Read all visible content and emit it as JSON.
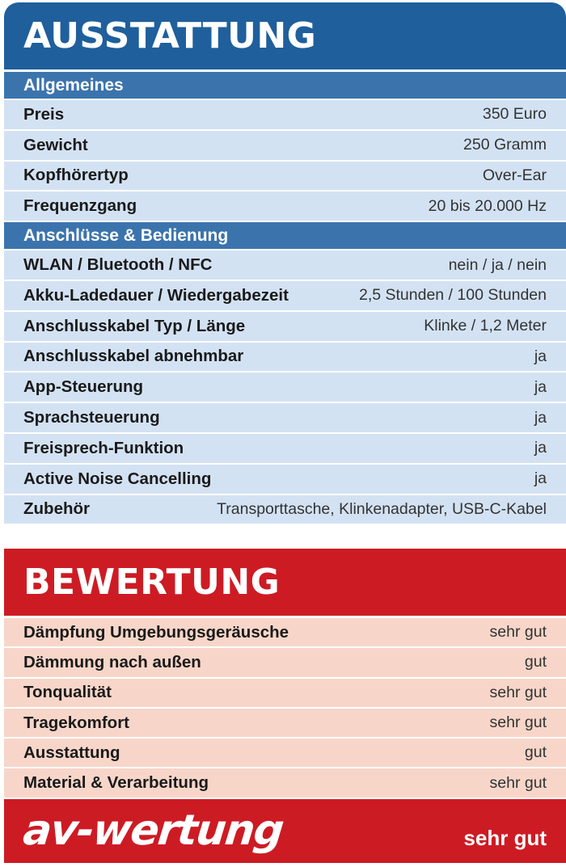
{
  "ausstattung": {
    "title": "AUSSTATTUNG",
    "sections": [
      {
        "heading": "Allgemeines",
        "rows": [
          {
            "label": "Preis",
            "value": "350 Euro"
          },
          {
            "label": "Gewicht",
            "value": "250 Gramm"
          },
          {
            "label": "Kopfhörertyp",
            "value": "Over-Ear"
          },
          {
            "label": "Frequenzgang",
            "value": "20 bis 20.000 Hz"
          }
        ]
      },
      {
        "heading": "Anschlüsse & Bedienung",
        "rows": [
          {
            "label": "WLAN / Bluetooth / NFC",
            "value": "nein / ja / nein"
          },
          {
            "label": "Akku-Ladedauer / Wiedergabezeit",
            "value": "2,5 Stunden / 100 Stunden"
          },
          {
            "label": "Anschlusskabel Typ / Länge",
            "value": "Klinke / 1,2 Meter"
          },
          {
            "label": "Anschlusskabel abnehmbar",
            "value": "ja"
          },
          {
            "label": "App-Steuerung",
            "value": "ja"
          },
          {
            "label": "Sprachsteuerung",
            "value": "ja"
          },
          {
            "label": "Freisprech-Funktion",
            "value": "ja"
          },
          {
            "label": "Active Noise Cancelling",
            "value": "ja"
          },
          {
            "label": "Zubehör",
            "value": "Transporttasche, Klinkenadapter, USB-C-Kabel"
          }
        ]
      }
    ]
  },
  "bewertung": {
    "title": "BEWERTUNG",
    "rows": [
      {
        "label": "Dämpfung Umgebungsgeräusche",
        "value": "sehr gut"
      },
      {
        "label": "Dämmung nach außen",
        "value": "gut"
      },
      {
        "label": "Tonqualität",
        "value": "sehr gut"
      },
      {
        "label": "Tragekomfort",
        "value": "sehr gut"
      },
      {
        "label": "Ausstattung",
        "value": "gut"
      },
      {
        "label": "Material & Verarbeitung",
        "value": "sehr gut"
      }
    ],
    "brand": "av-wertung",
    "verdict": "sehr gut"
  },
  "colors": {
    "header_blue": "#1f5f9c",
    "section_blue": "#3b74ad",
    "row_blue": "#d3e2f3",
    "header_red": "#cd1b24",
    "row_red": "#f7d6c9"
  }
}
